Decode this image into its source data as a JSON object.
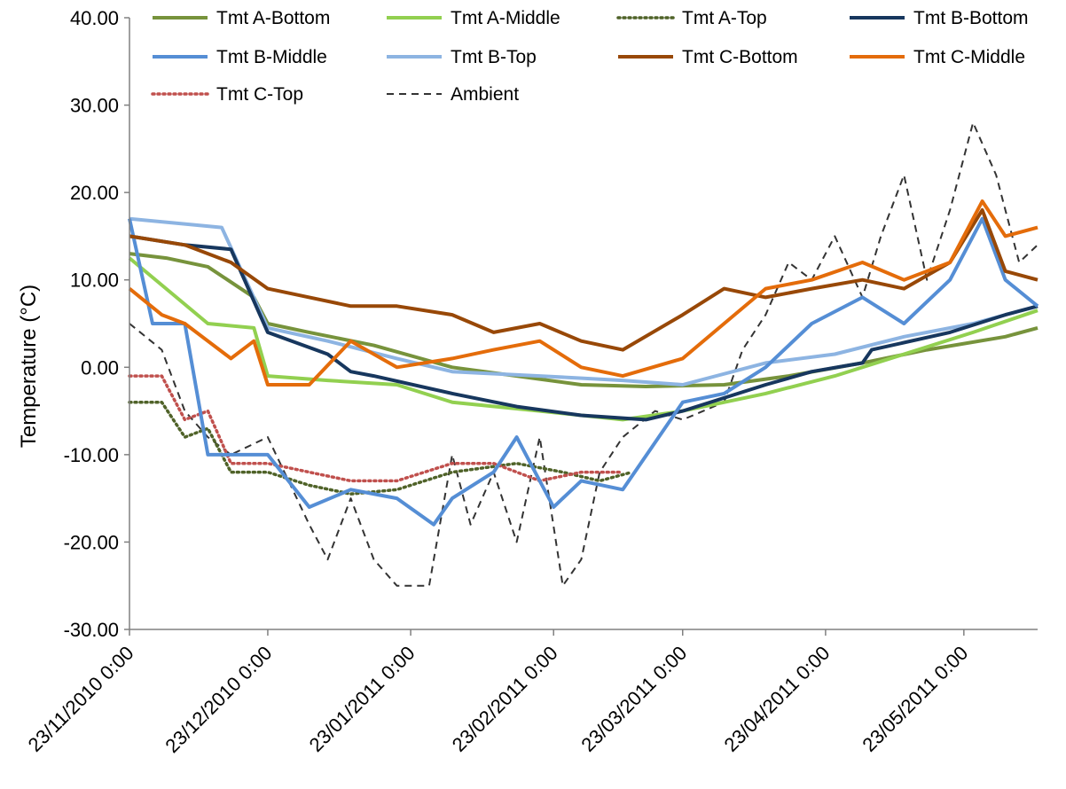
{
  "chart_data": {
    "type": "line",
    "title": "",
    "xlabel": "",
    "ylabel": "Temperature (°C)",
    "ylim": [
      -30,
      40
    ],
    "yticks": [
      "-30.00",
      "-20.00",
      "-10.00",
      "0.00",
      "10.00",
      "20.00",
      "30.00",
      "40.00"
    ],
    "xlim": [
      "2010-11-23",
      "2011-06-08"
    ],
    "xticks": [
      {
        "date": "2010-11-23",
        "label": "23/11/2010 0:00"
      },
      {
        "date": "2010-12-23",
        "label": "23/12/2010 0:00"
      },
      {
        "date": "2011-01-23",
        "label": "23/01/2011 0:00"
      },
      {
        "date": "2011-02-23",
        "label": "23/02/2011 0:00"
      },
      {
        "date": "2011-03-23",
        "label": "23/03/2011 0:00"
      },
      {
        "date": "2011-04-23",
        "label": "23/04/2011 0:00"
      },
      {
        "date": "2011-05-23",
        "label": "23/05/2011 0:00"
      }
    ],
    "legend_position": "top",
    "grid": false,
    "series": [
      {
        "name": "Tmt A-Bottom",
        "color": "#77933c",
        "style": "solid",
        "x": [
          "2010-11-23",
          "2010-12-01",
          "2010-12-10",
          "2010-12-20",
          "2010-12-23",
          "2011-01-01",
          "2011-01-15",
          "2011-02-01",
          "2011-02-15",
          "2011-03-01",
          "2011-03-15",
          "2011-04-01",
          "2011-04-15",
          "2011-05-01",
          "2011-05-15",
          "2011-06-01",
          "2011-06-08"
        ],
        "y": [
          13,
          12.5,
          11.5,
          8,
          5,
          4,
          2.5,
          0,
          -1,
          -2,
          -2.2,
          -2,
          -1,
          0.5,
          2,
          3.5,
          4.5
        ]
      },
      {
        "name": "Tmt A-Middle",
        "color": "#92d050",
        "style": "solid",
        "x": [
          "2010-11-23",
          "2010-12-10",
          "2010-12-20",
          "2010-12-23",
          "2011-01-05",
          "2011-01-20",
          "2011-02-01",
          "2011-02-20",
          "2011-03-10",
          "2011-03-23",
          "2011-04-10",
          "2011-04-25",
          "2011-05-10",
          "2011-05-25",
          "2011-06-08"
        ],
        "y": [
          12.5,
          5,
          4.5,
          -1,
          -1.5,
          -2,
          -4,
          -5,
          -6,
          -5,
          -3,
          -1,
          1.5,
          4,
          6.5
        ]
      },
      {
        "name": "Tmt A-Top",
        "color": "#4f6228",
        "style": "dotted",
        "x": [
          "2010-11-23",
          "2010-11-30",
          "2010-12-05",
          "2010-12-10",
          "2010-12-15",
          "2010-12-23",
          "2011-01-01",
          "2011-01-10",
          "2011-01-20",
          "2011-02-01",
          "2011-02-15",
          "2011-02-25",
          "2011-03-05",
          "2011-03-12"
        ],
        "y": [
          -4,
          -4,
          -8,
          -7,
          -12,
          -12,
          -13.5,
          -14.5,
          -14,
          -12,
          -11,
          -12,
          -13,
          -12
        ]
      },
      {
        "name": "Tmt B-Bottom",
        "color": "#17375e",
        "style": "solid",
        "x": [
          "2010-11-23",
          "2010-12-05",
          "2010-12-15",
          "2010-12-23",
          "2011-01-05",
          "2011-01-10",
          "2011-01-15",
          "2011-02-01",
          "2011-02-15",
          "2011-03-01",
          "2011-03-15",
          "2011-03-23",
          "2011-04-10",
          "2011-04-20",
          "2011-05-01",
          "2011-05-03",
          "2011-05-20",
          "2011-06-01",
          "2011-06-08"
        ],
        "y": [
          15,
          14,
          13.5,
          4,
          1.5,
          -0.5,
          -1,
          -3,
          -4.5,
          -5.5,
          -6,
          -5,
          -2,
          -0.5,
          0.5,
          2,
          4,
          6,
          7
        ]
      },
      {
        "name": "Tmt B-Middle",
        "color": "#558ed5",
        "style": "solid",
        "x": [
          "2010-11-23",
          "2010-11-28",
          "2010-12-05",
          "2010-12-10",
          "2010-12-15",
          "2010-12-23",
          "2011-01-01",
          "2011-01-10",
          "2011-01-20",
          "2011-01-28",
          "2011-02-01",
          "2011-02-10",
          "2011-02-15",
          "2011-02-23",
          "2011-03-01",
          "2011-03-10",
          "2011-03-23",
          "2011-04-01",
          "2011-04-10",
          "2011-04-20",
          "2011-05-01",
          "2011-05-10",
          "2011-05-20",
          "2011-05-27",
          "2011-06-01",
          "2011-06-08"
        ],
        "y": [
          17,
          5,
          5,
          -10,
          -10,
          -10,
          -16,
          -14,
          -15,
          -18,
          -15,
          -12,
          -8,
          -16,
          -13,
          -14,
          -4,
          -3,
          0,
          5,
          8,
          5,
          10,
          17,
          10,
          7
        ]
      },
      {
        "name": "Tmt B-Top",
        "color": "#8db4e2",
        "style": "solid",
        "x": [
          "2010-11-23",
          "2010-12-13",
          "2010-12-23",
          "2011-01-05",
          "2011-01-20",
          "2011-02-01",
          "2011-02-20",
          "2011-03-10",
          "2011-03-23",
          "2011-04-10",
          "2011-04-25",
          "2011-05-10",
          "2011-05-25",
          "2011-06-08"
        ],
        "y": [
          17,
          16,
          4.5,
          3,
          1,
          -0.5,
          -1,
          -1.5,
          -2,
          0.5,
          1.5,
          3.5,
          5,
          7
        ]
      },
      {
        "name": "Tmt C-Bottom",
        "color": "#984807",
        "style": "solid",
        "x": [
          "2010-11-23",
          "2010-12-05",
          "2010-12-15",
          "2010-12-23",
          "2011-01-01",
          "2011-01-10",
          "2011-01-20",
          "2011-02-01",
          "2011-02-10",
          "2011-02-20",
          "2011-03-01",
          "2011-03-10",
          "2011-03-23",
          "2011-04-01",
          "2011-04-10",
          "2011-04-20",
          "2011-05-01",
          "2011-05-10",
          "2011-05-20",
          "2011-05-27",
          "2011-06-01",
          "2011-06-08"
        ],
        "y": [
          15,
          14,
          12,
          9,
          8,
          7,
          7,
          6,
          4,
          5,
          3,
          2,
          6,
          9,
          8,
          9,
          10,
          9,
          12,
          18,
          11,
          10
        ]
      },
      {
        "name": "Tmt C-Middle",
        "color": "#e46c0a",
        "style": "solid",
        "x": [
          "2010-11-23",
          "2010-11-30",
          "2010-12-05",
          "2010-12-15",
          "2010-12-20",
          "2010-12-23",
          "2011-01-01",
          "2011-01-10",
          "2011-01-20",
          "2011-02-01",
          "2011-02-10",
          "2011-02-20",
          "2011-03-01",
          "2011-03-10",
          "2011-03-23",
          "2011-04-01",
          "2011-04-10",
          "2011-04-20",
          "2011-05-01",
          "2011-05-10",
          "2011-05-20",
          "2011-05-27",
          "2011-06-01",
          "2011-06-08"
        ],
        "y": [
          9,
          6,
          5,
          1,
          3,
          -2,
          -2,
          3,
          0,
          1,
          2,
          3,
          0,
          -1,
          1,
          5,
          9,
          10,
          12,
          10,
          12,
          19,
          15,
          16
        ]
      },
      {
        "name": "Tmt C-Top",
        "color": "#c0504d",
        "style": "dotted",
        "x": [
          "2010-11-23",
          "2010-11-30",
          "2010-12-05",
          "2010-12-10",
          "2010-12-15",
          "2010-12-23",
          "2011-01-01",
          "2011-01-10",
          "2011-01-20",
          "2011-02-01",
          "2011-02-10",
          "2011-02-20",
          "2011-03-01",
          "2011-03-10"
        ],
        "y": [
          -1,
          -1,
          -6,
          -5,
          -11,
          -11,
          -12,
          -13,
          -13,
          -11,
          -11,
          -13,
          -12,
          -12
        ]
      },
      {
        "name": "Ambient",
        "color": "#333333",
        "style": "dashed",
        "x": [
          "2010-11-23",
          "2010-11-30",
          "2010-12-05",
          "2010-12-10",
          "2010-12-15",
          "2010-12-23",
          "2011-01-01",
          "2011-01-05",
          "2011-01-10",
          "2011-01-15",
          "2011-01-20",
          "2011-01-27",
          "2011-02-01",
          "2011-02-05",
          "2011-02-10",
          "2011-02-15",
          "2011-02-20",
          "2011-02-25",
          "2011-03-01",
          "2011-03-05",
          "2011-03-10",
          "2011-03-17",
          "2011-03-23",
          "2011-04-01",
          "2011-04-05",
          "2011-04-10",
          "2011-04-15",
          "2011-04-20",
          "2011-04-25",
          "2011-05-01",
          "2011-05-05",
          "2011-05-10",
          "2011-05-15",
          "2011-05-20",
          "2011-05-25",
          "2011-05-30",
          "2011-06-04",
          "2011-06-08"
        ],
        "y": [
          5,
          2,
          -5,
          -8,
          -10,
          -8,
          -18,
          -22,
          -15,
          -22,
          -25,
          -25,
          -10,
          -18,
          -12,
          -20,
          -8,
          -25,
          -22,
          -12,
          -8,
          -5,
          -6,
          -4,
          2,
          6,
          12,
          10,
          15,
          8,
          15,
          22,
          10,
          18,
          28,
          22,
          12,
          14
        ]
      }
    ]
  }
}
